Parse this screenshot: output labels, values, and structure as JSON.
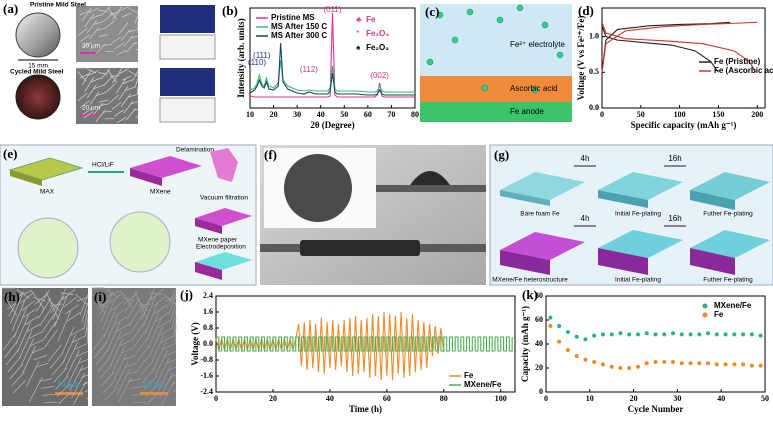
{
  "panels": {
    "a": {
      "label": "(a)",
      "pristine_title": "Pristine Mild Steel",
      "pristine_scale": "15 mm",
      "pristine_sem_scale": "20 µm",
      "cycled_title": "Cycled Mild Steel",
      "cycled_sem_scale": "20 µm"
    },
    "c": {
      "label": "(c)",
      "electrolyte": "Fe²⁺ electrolyte",
      "layer": "Ascorbic acid",
      "anode": "Fe anode"
    },
    "e": {
      "label": "(e)",
      "max": "MAX",
      "etch": "HCl/LiF",
      "mxene": "MXene",
      "delamination": "Delamination",
      "filtration": "Vacuum filtration",
      "paper": "MXene paper",
      "electrodeposition": "Electrodeposition"
    },
    "f": {
      "label": "(f)"
    },
    "g": {
      "label": "(g)",
      "top_step1": "4h",
      "top_step2": "16h",
      "bare": "Bare foam Fe",
      "top_initial": "Initial Fe-plating",
      "top_further": "Futher Fe-plating",
      "bottom_step1": "4h",
      "bottom_step2": "16h",
      "hetero": "MXene/Fe heterostructure",
      "bottom_initial": "Initial Fe-plating",
      "bottom_further": "Futher Fe-plating"
    },
    "h": {
      "label": "(h)",
      "scale": "10 µm"
    },
    "i": {
      "label": "(i)",
      "scale": "10 µm"
    }
  },
  "chart_data": [
    {
      "type": "line",
      "panel_label": "(b)",
      "xlabel": "2θ (Degree)",
      "ylabel": "Intensity (arb. units)",
      "xlim": [
        10,
        80
      ],
      "ylim": [
        0,
        100
      ],
      "xticks": [
        10,
        20,
        30,
        40,
        50,
        60,
        70,
        80
      ],
      "legend": "upper left",
      "x": [
        10,
        12,
        13,
        14,
        15,
        16,
        17,
        18,
        20,
        22,
        23,
        24,
        26,
        30,
        33,
        35,
        38,
        40,
        43,
        44,
        45,
        46,
        47,
        50,
        55,
        60,
        63,
        64,
        65,
        66,
        67,
        70,
        75,
        80
      ],
      "series": [
        {
          "name": "Pristine MS",
          "color": "#e0338f",
          "values": [
            12,
            11,
            11,
            11,
            11,
            11,
            11,
            11,
            11,
            11,
            11,
            11,
            11,
            11,
            11,
            11,
            11,
            11,
            11,
            12,
            95,
            13,
            11,
            11,
            11,
            11,
            11,
            13,
            25,
            12,
            11,
            11,
            11,
            11
          ]
        },
        {
          "name": "MS After 150 C",
          "color": "#3cb878",
          "values": [
            18,
            20,
            25,
            33,
            24,
            22,
            30,
            22,
            20,
            25,
            48,
            28,
            22,
            18,
            17,
            18,
            17,
            17,
            17,
            20,
            42,
            19,
            17,
            17,
            17,
            16,
            16,
            17,
            22,
            17,
            16,
            16,
            16,
            16
          ]
        },
        {
          "name": "MS After 300 C",
          "color": "#13485a",
          "values": [
            15,
            18,
            22,
            28,
            22,
            20,
            26,
            19,
            18,
            22,
            65,
            26,
            19,
            15,
            14,
            16,
            14,
            14,
            14,
            17,
            35,
            16,
            14,
            14,
            14,
            13,
            13,
            14,
            18,
            14,
            13,
            13,
            13,
            13
          ]
        }
      ],
      "peak_labels": [
        "(110)",
        "(111)",
        "(112)",
        "(011)",
        "(002)"
      ],
      "phase_legend": [
        {
          "symbol": "♣",
          "label": "Fe"
        },
        {
          "symbol": "*",
          "label": "Fe₃O₄"
        },
        {
          "symbol": "♠",
          "label": "Fe₂O₃"
        }
      ]
    },
    {
      "type": "line",
      "panel_label": "(d)",
      "xlabel": "Specific capacity (mAh g⁻¹)",
      "ylabel": "Voltage (V vs Fe²⁺/Fe)",
      "xlim": [
        0,
        210
      ],
      "ylim": [
        0,
        1.4
      ],
      "xticks": [
        0,
        50,
        100,
        150,
        200
      ],
      "yticks": [
        {
          "value": 0,
          "label": "0.0"
        },
        {
          "value": 0.5,
          "label": "0.5"
        },
        {
          "value": 1,
          "label": "1.0"
        }
      ],
      "legend": "center right",
      "series": [
        {
          "name": "Fe (Pristine)",
          "color": "#222222",
          "x": [
            0,
            5,
            20,
            50,
            90,
            120,
            140,
            150,
            null,
            0,
            5,
            20,
            60,
            100,
            140,
            165
          ],
          "values": [
            1.15,
            1.0,
            0.95,
            0.92,
            0.88,
            0.8,
            0.65,
            0.5,
            null,
            0.5,
            0.95,
            1.1,
            1.15,
            1.17,
            1.18,
            1.2
          ]
        },
        {
          "name": "Fe (Ascorbic acid)",
          "color": "#d9302c",
          "x": [
            0,
            5,
            30,
            80,
            130,
            170,
            190,
            198,
            null,
            0,
            5,
            30,
            80,
            130,
            180,
            200
          ],
          "values": [
            1.2,
            1.05,
            0.97,
            0.94,
            0.9,
            0.8,
            0.65,
            0.5,
            null,
            0.5,
            0.9,
            1.08,
            1.14,
            1.17,
            1.19,
            1.2
          ]
        }
      ]
    },
    {
      "type": "line",
      "panel_label": "(j)",
      "xlabel": "Time (h)",
      "ylabel": "Voltage (V)",
      "xlim": [
        0,
        105
      ],
      "ylim": [
        -2.4,
        2.4
      ],
      "xticks": [
        0,
        20,
        40,
        60,
        80,
        100
      ],
      "yticks": [
        {
          "value": -2.4,
          "label": "-2.4"
        },
        {
          "value": -1.6,
          "label": "-1.6"
        },
        {
          "value": -0.8,
          "label": "-0.8"
        },
        {
          "value": 0,
          "label": "0.0"
        },
        {
          "value": 0.8,
          "label": "0.8"
        },
        {
          "value": 1.6,
          "label": "1.6"
        },
        {
          "value": 2.4,
          "label": "2.4"
        }
      ],
      "legend": "lower right",
      "series": [
        {
          "name": "Fe",
          "color": "#f08a2a",
          "x": [
            0,
            1,
            2,
            3,
            4,
            5,
            6,
            7,
            8,
            9,
            10,
            11,
            12,
            13,
            14,
            15,
            16,
            17,
            18,
            19,
            20,
            21,
            22,
            23,
            24,
            25,
            26,
            27,
            28,
            29,
            30,
            31,
            32,
            33,
            34,
            35,
            36,
            37,
            38,
            39,
            40,
            41,
            42,
            43,
            44,
            45,
            46,
            47,
            48,
            49,
            50,
            51,
            52,
            53,
            54,
            55,
            56,
            57,
            58,
            59,
            60,
            61,
            62,
            63,
            64,
            65,
            66,
            67,
            68,
            69,
            70,
            71,
            72,
            73,
            74,
            75,
            76,
            77,
            78,
            79,
            80
          ],
          "values": [
            0.25,
            -0.3,
            0.25,
            -0.3,
            0.25,
            -0.3,
            0.25,
            -0.3,
            0.25,
            -0.3,
            0.25,
            -0.3,
            0.25,
            -0.3,
            0.25,
            -0.3,
            0.25,
            -0.3,
            0.25,
            -0.3,
            0.25,
            -0.3,
            0.25,
            -0.3,
            0.25,
            -0.3,
            0.25,
            -0.3,
            0.25,
            1.0,
            -1.1,
            1.1,
            -1.3,
            1.2,
            -1.2,
            1.0,
            -1.4,
            1.3,
            -1.5,
            1.1,
            -1.2,
            1.2,
            -1.3,
            1.0,
            -1.1,
            1.2,
            -1.4,
            1.3,
            -1.6,
            1.4,
            -1.5,
            1.2,
            -1.4,
            1.3,
            -1.7,
            1.5,
            -1.6,
            1.4,
            -1.8,
            1.6,
            -1.6,
            1.5,
            -1.8,
            1.4,
            -1.5,
            1.6,
            -1.7,
            1.3,
            -1.6,
            1.5,
            -1.4,
            1.2,
            -1.3,
            1.1,
            -1.2,
            1.0,
            -0.6,
            0.9,
            -0.5,
            0.8,
            -0.4
          ]
        },
        {
          "name": "MXene/Fe",
          "color": "#4caf50",
          "drawstyle": "steps-post",
          "x": [
            0,
            1,
            2,
            3,
            4,
            5,
            6,
            7,
            8,
            9,
            10,
            11,
            12,
            13,
            14,
            15,
            16,
            17,
            18,
            19,
            20,
            21,
            22,
            23,
            24,
            25,
            26,
            27,
            28,
            29,
            30,
            31,
            32,
            33,
            34,
            35,
            36,
            37,
            38,
            39,
            40,
            41,
            42,
            43,
            44,
            45,
            46,
            47,
            48,
            49,
            50,
            51,
            52,
            53,
            54,
            55,
            56,
            57,
            58,
            59,
            60,
            61,
            62,
            63,
            64,
            65,
            66,
            67,
            68,
            69,
            70,
            71,
            72,
            73,
            74,
            75,
            76,
            77,
            78,
            79,
            80,
            81,
            82,
            83,
            84,
            85,
            86,
            87,
            88,
            89,
            90,
            91,
            92,
            93,
            94,
            95,
            96,
            97,
            98,
            99,
            100,
            101,
            102,
            103,
            104
          ],
          "values": [
            0.35,
            -0.35,
            0.35,
            -0.35,
            0.35,
            -0.35,
            0.35,
            -0.35,
            0.35,
            -0.35,
            0.35,
            -0.35,
            0.35,
            -0.35,
            0.35,
            -0.35,
            0.35,
            -0.35,
            0.35,
            -0.35,
            0.35,
            -0.35,
            0.35,
            -0.35,
            0.35,
            -0.35,
            0.35,
            -0.35,
            0.35,
            -0.35,
            0.35,
            -0.35,
            0.35,
            -0.35,
            0.35,
            -0.35,
            0.35,
            -0.35,
            0.35,
            -0.35,
            0.35,
            -0.35,
            0.35,
            -0.35,
            0.35,
            -0.35,
            0.35,
            -0.35,
            0.35,
            -0.35,
            0.35,
            -0.35,
            0.35,
            -0.35,
            0.35,
            -0.35,
            0.35,
            -0.35,
            0.35,
            -0.35,
            0.35,
            -0.35,
            0.35,
            -0.35,
            0.35,
            -0.35,
            0.35,
            -0.35,
            0.35,
            -0.35,
            0.35,
            -0.35,
            0.35,
            -0.35,
            0.35,
            -0.35,
            0.35,
            -0.35,
            0.35,
            -0.35,
            0.35,
            -0.35,
            0.35,
            -0.35,
            0.35,
            -0.35,
            0.35,
            -0.35,
            0.35,
            -0.35,
            0.35,
            -0.35,
            0.35,
            -0.35,
            0.35,
            -0.35,
            0.35,
            -0.35,
            0.35,
            -0.35,
            0.35,
            -0.35,
            0.35,
            -0.35,
            0.35
          ]
        }
      ]
    },
    {
      "type": "scatter",
      "panel_label": "(k)",
      "xlabel": "Cycle Number",
      "ylabel": "Capacity (mAh g⁻¹)",
      "xlim": [
        0,
        50
      ],
      "ylim": [
        0,
        80
      ],
      "xticks": [
        0,
        10,
        20,
        30,
        40,
        50
      ],
      "yticks": [
        0,
        20,
        40,
        60,
        80
      ],
      "legend": "upper right",
      "x": [
        1,
        3,
        5,
        7,
        9,
        11,
        13,
        15,
        17,
        19,
        21,
        23,
        25,
        27,
        29,
        31,
        33,
        35,
        37,
        39,
        41,
        43,
        45,
        47,
        49
      ],
      "series": [
        {
          "name": "MXene/Fe",
          "color": "#27b38a",
          "values": [
            62,
            55,
            50,
            46,
            44,
            47,
            48,
            48,
            49,
            48,
            48,
            49,
            48,
            48,
            49,
            48,
            48,
            48,
            49,
            48,
            48,
            48,
            48,
            48,
            47
          ]
        },
        {
          "name": "Fe",
          "color": "#f08a24",
          "values": [
            55,
            42,
            35,
            30,
            27,
            25,
            23,
            21,
            20,
            20,
            21,
            24,
            25,
            25,
            25,
            24,
            24,
            24,
            24,
            23,
            23,
            23,
            23,
            22,
            22
          ]
        }
      ]
    }
  ]
}
